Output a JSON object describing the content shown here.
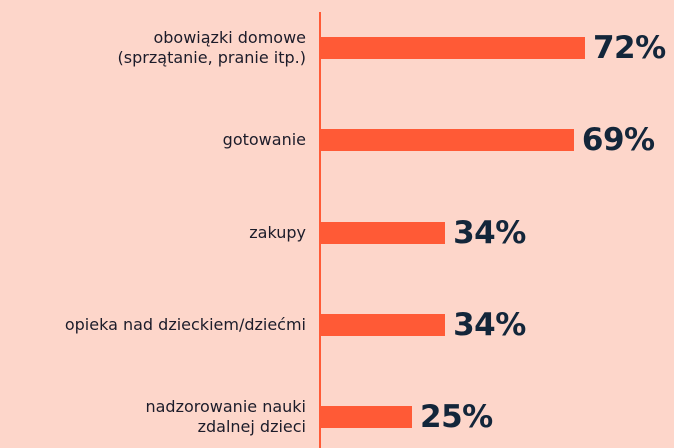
{
  "chart_data": {
    "type": "bar",
    "orientation": "horizontal",
    "categories": [
      "obowiązki domowe\n(sprzątanie, pranie itp.)",
      "gotowanie",
      "zakupy",
      "opieka nad dzieckiem/dziećmi",
      "nadzorowanie nauki\nzdalnej dzieci"
    ],
    "values": [
      72,
      69,
      34,
      34,
      25
    ],
    "value_labels": [
      "72%",
      "69%",
      "34%",
      "34%",
      "25%"
    ],
    "color": "#ff5a36",
    "xlim": [
      0,
      100
    ]
  }
}
